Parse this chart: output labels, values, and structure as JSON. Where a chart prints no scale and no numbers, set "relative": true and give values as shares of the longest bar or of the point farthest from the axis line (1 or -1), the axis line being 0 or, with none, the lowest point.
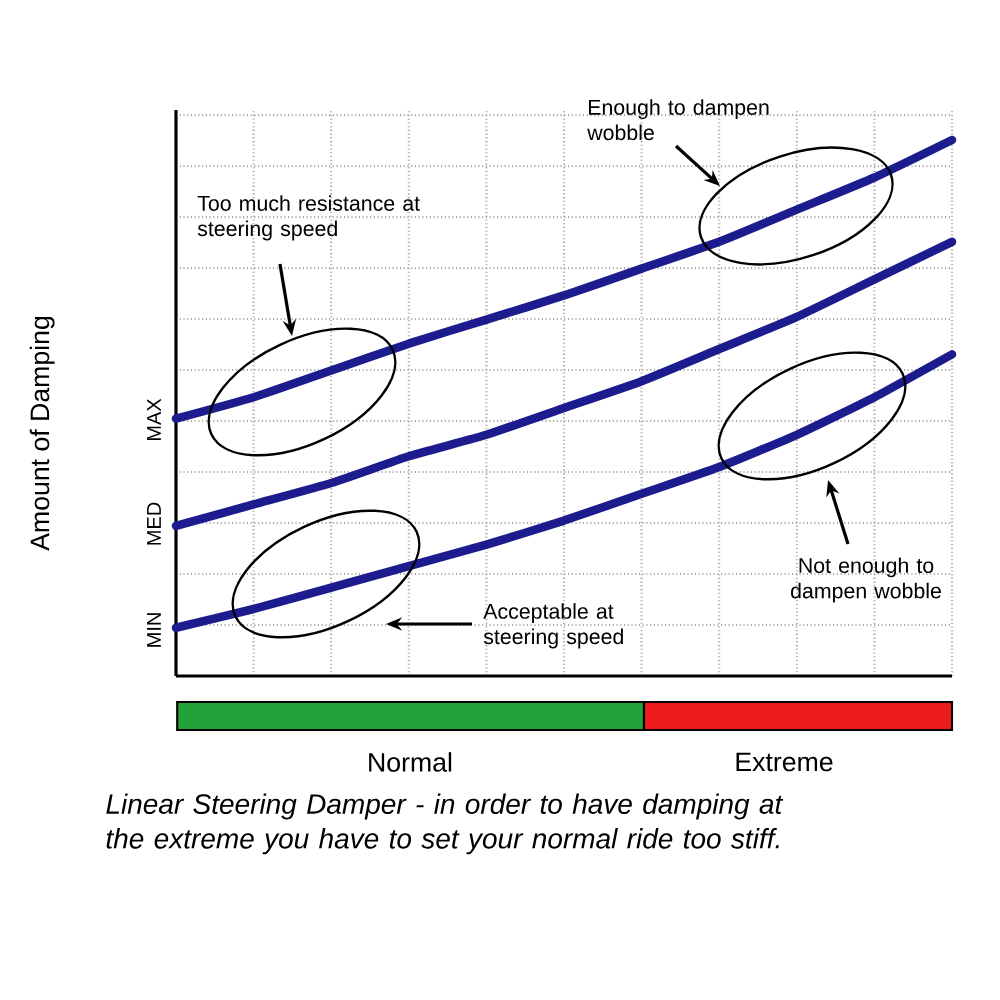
{
  "chart_data": {
    "type": "line",
    "relative": true,
    "ylabel": "Amount of Damping",
    "categories": [
      null,
      null,
      null,
      null,
      null,
      null,
      null,
      null,
      null,
      null,
      null
    ],
    "series": [
      {
        "color": "#1c1c8e",
        "values": [
          0.48,
          0.52,
          0.57,
          0.62,
          0.665,
          0.71,
          0.76,
          0.81,
          0.87,
          0.93,
          1.0
        ]
      },
      {
        "color": "#1c1c8e",
        "values": [
          0.28,
          0.32,
          0.36,
          0.41,
          0.45,
          0.5,
          0.55,
          0.61,
          0.67,
          0.74,
          0.81
        ]
      },
      {
        "color": "#1c1c8e",
        "values": [
          0.09,
          0.125,
          0.165,
          0.205,
          0.245,
          0.29,
          0.34,
          0.39,
          0.45,
          0.52,
          0.6
        ]
      }
    ],
    "annotations": [
      "MIN",
      "MED",
      "MAX",
      "Too much resistance at steering speed",
      "Enough to dampen wobble",
      "Not enough to dampen wobble",
      "Acceptable at steering speed",
      "Normal",
      "Extreme",
      "Linear Steering Damper - in order to have damping at the extreme you have to set your normal ride too stiff."
    ],
    "grid": true,
    "line_style": "solid",
    "marker": "none"
  }
}
